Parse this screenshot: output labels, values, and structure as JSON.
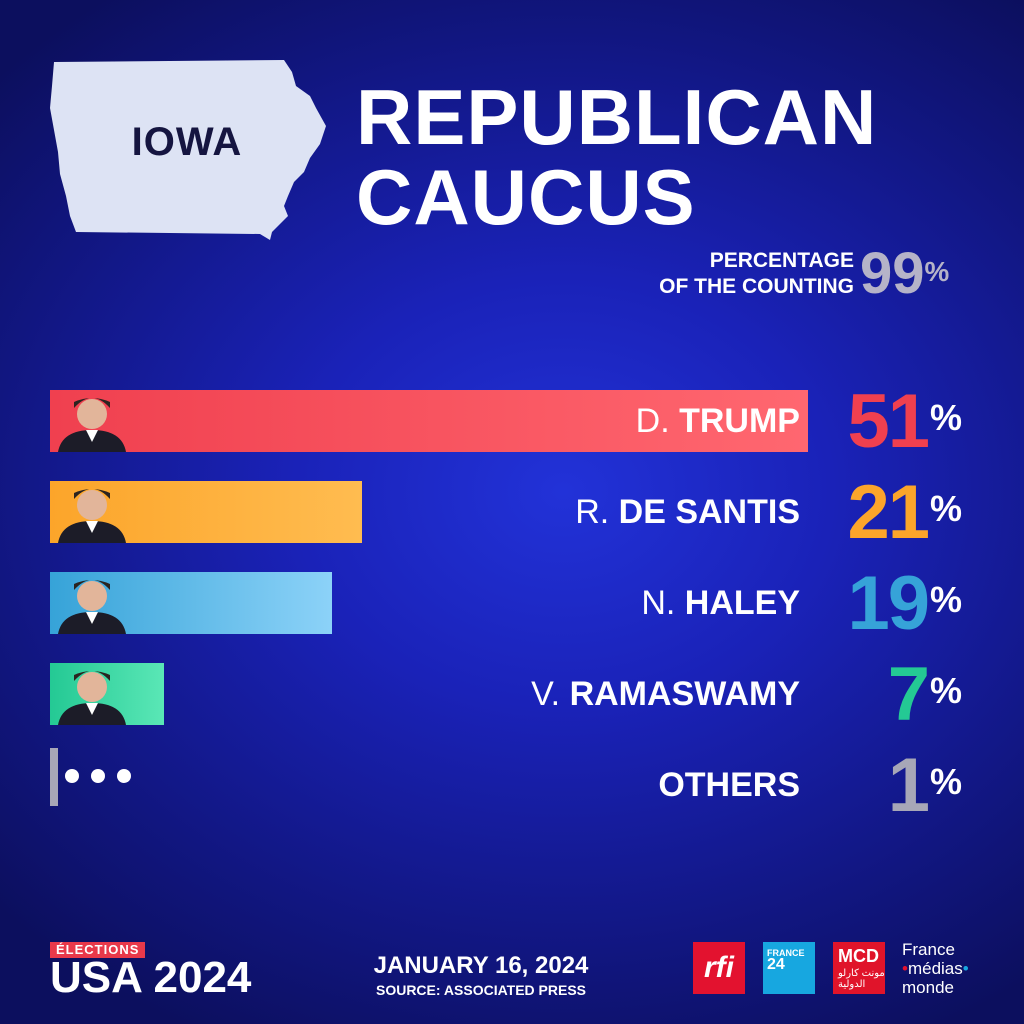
{
  "state": {
    "name": "IOWA",
    "color": "#dde3f4"
  },
  "title": {
    "line1": "REPUBLICAN",
    "line2": "CAUCUS"
  },
  "counting": {
    "label_line1": "PERCENTAGE",
    "label_line2": "OF THE COUNTING",
    "value": "99",
    "unit": "%"
  },
  "chart_data": {
    "type": "bar",
    "orientation": "horizontal",
    "categories": [
      "D. TRUMP",
      "R. DE SANTIS",
      "N. HALEY",
      "V. RAMASWAMY",
      "OTHERS"
    ],
    "values": [
      51,
      21,
      19,
      7,
      1
    ],
    "xlim": [
      0,
      51
    ],
    "bars": [
      {
        "initial": "D.",
        "surname": "TRUMP",
        "value": 51,
        "label": "51",
        "color": "#f0404f",
        "color2": "#ff6770",
        "avatar": "person-portrait-icon"
      },
      {
        "initial": "R.",
        "surname": "DE SANTIS",
        "value": 21,
        "label": "21",
        "color": "#fca52a",
        "color2": "#ffbc50",
        "avatar": "person-portrait-icon"
      },
      {
        "initial": "N.",
        "surname": "HALEY",
        "value": 19,
        "label": "19",
        "color": "#36a3d8",
        "color2": "#8cd2f8",
        "avatar": "person-portrait-icon"
      },
      {
        "initial": "V.",
        "surname": "RAMASWAMY",
        "value": 7,
        "label": "7",
        "color": "#24c994",
        "color2": "#5ae7b6",
        "avatar": "person-portrait-icon"
      },
      {
        "initial": "",
        "surname": "OTHERS",
        "value": 1,
        "label": "1",
        "color": "#a7a7b7",
        "color2": "#c7c7d4",
        "avatar": "ellipsis-icon"
      }
    ],
    "unit": "%"
  },
  "footer": {
    "elections_tag": "ÉLECTIONS",
    "usa": "USA",
    "year": "2024",
    "date": "JANUARY 16, 2024",
    "source": "SOURCE: ASSOCIATED PRESS",
    "logos": {
      "rfi": "rfi",
      "f24_top": "FRANCE",
      "f24_bottom": "24",
      "mcd": "MCD",
      "mcd_sub": "مونت كارلو الدولية",
      "fmm_line1": "France",
      "fmm_line2": "médias",
      "fmm_line3": "monde"
    }
  }
}
